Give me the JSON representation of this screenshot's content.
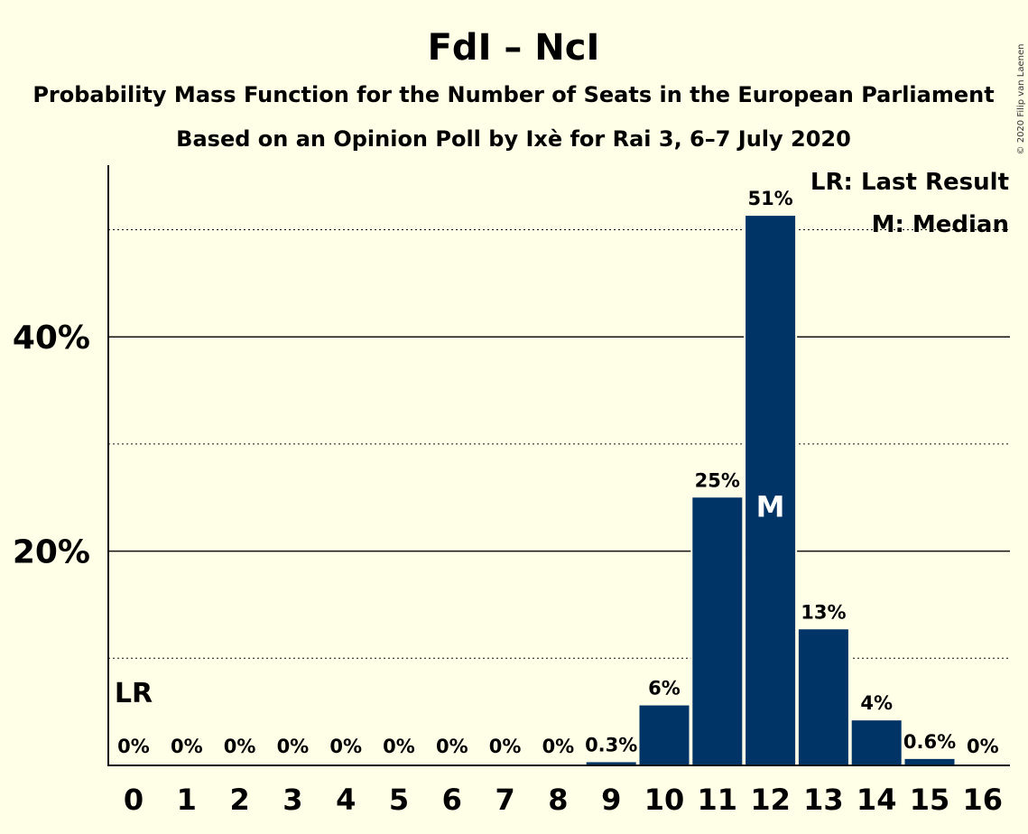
{
  "chart_data": {
    "type": "bar",
    "title": "FdI – NcI",
    "subtitle": "Probability Mass Function for the Number of Seats in the European Parliament",
    "subtitle2": "Based on an Opinion Poll by Ixè for Rai 3, 6–7 July 2020",
    "copyright": "© 2020 Filip van Laenen",
    "categories": [
      "0",
      "1",
      "2",
      "3",
      "4",
      "5",
      "6",
      "7",
      "8",
      "9",
      "10",
      "11",
      "12",
      "13",
      "14",
      "15",
      "16"
    ],
    "values": [
      0,
      0,
      0,
      0,
      0,
      0,
      0,
      0,
      0,
      0.3,
      5.6,
      25.0,
      51.3,
      12.7,
      4.2,
      0.6,
      0
    ],
    "value_labels": [
      "0%",
      "0%",
      "0%",
      "0%",
      "0%",
      "0%",
      "0%",
      "0%",
      "0%",
      "0.3%",
      "6%",
      "25%",
      "51%",
      "13%",
      "4%",
      "0.6%",
      "0%"
    ],
    "yticks": [
      {
        "value": 20,
        "label": "20%"
      },
      {
        "value": 40,
        "label": "40%"
      }
    ],
    "minor_gridlines": [
      10,
      30,
      50
    ],
    "ylim": [
      0,
      56
    ],
    "bar_color": "#003366",
    "median_index": 12,
    "median_marker": "M",
    "last_result_index": 0,
    "last_result_marker": "LR",
    "legend": [
      "LR: Last Result",
      "M: Median"
    ],
    "legend_position": "top-right"
  }
}
